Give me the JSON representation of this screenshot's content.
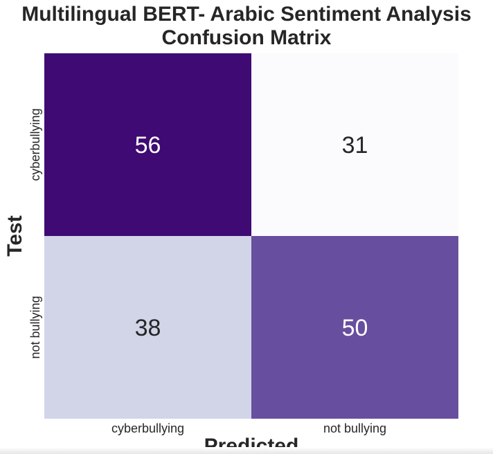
{
  "chart_data": {
    "type": "heatmap",
    "title_lines": [
      "Multilingual BERT- Arabic Sentiment Analysis",
      "Confusion Matrix"
    ],
    "xlabel": "Predicted",
    "ylabel": "Test",
    "x_categories": [
      "cyberbullying",
      "not bullying"
    ],
    "y_categories": [
      "cyberbullying",
      "not bullying"
    ],
    "values": [
      [
        56,
        31
      ],
      [
        38,
        50
      ]
    ],
    "colormap": "Purples",
    "colorbar": false,
    "colors": {
      "56": "#3f0a73",
      "31": "#fbfafd",
      "38": "#d2d4e8",
      "50": "#684e9e"
    },
    "text_colors": {
      "dark": "#262626",
      "light": "#ffffff"
    }
  }
}
